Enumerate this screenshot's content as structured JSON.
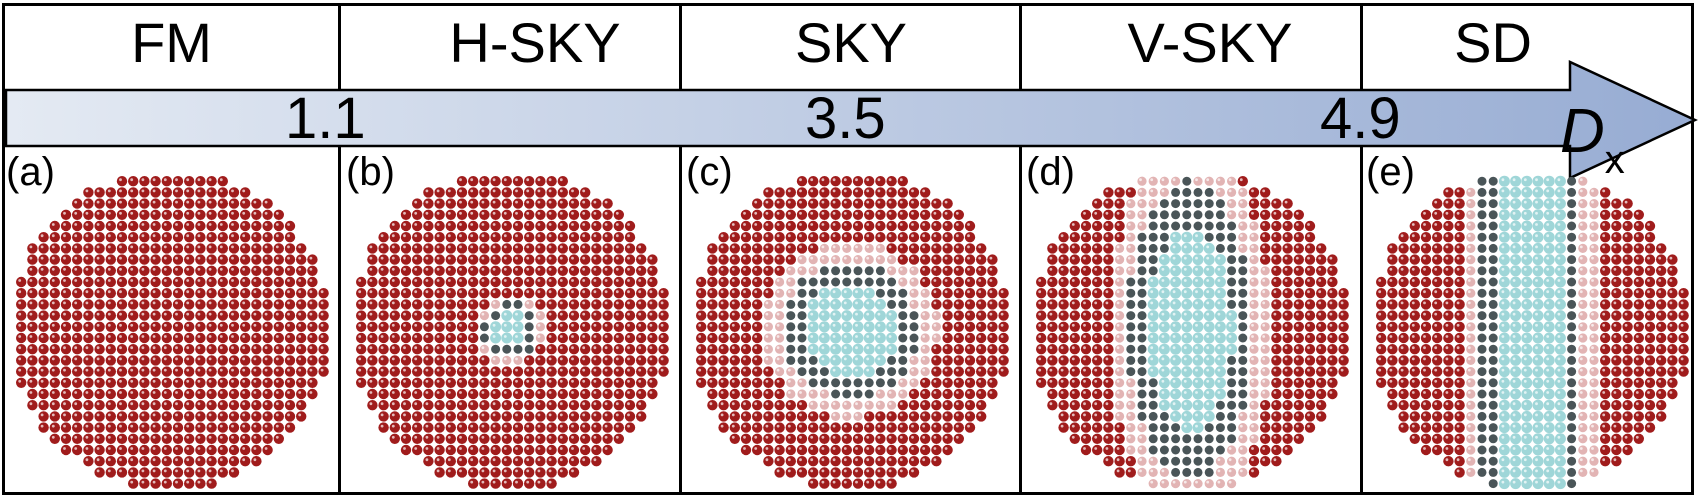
{
  "phases": [
    "FM",
    "H-SKY",
    "SKY",
    "V-SKY",
    "SD"
  ],
  "axis": {
    "label": "D",
    "subscript": "x",
    "values": [
      "1.1",
      "3.5",
      "4.9"
    ]
  },
  "panels": [
    {
      "label": "(a)",
      "texture": "uniform"
    },
    {
      "label": "(b)",
      "texture": "small-core"
    },
    {
      "label": "(c)",
      "texture": "round-core"
    },
    {
      "label": "(d)",
      "texture": "elongated-core"
    },
    {
      "label": "(e)",
      "texture": "stripe"
    }
  ],
  "colors": {
    "spin_up": "#a01c1c",
    "spin_down": "#9fd6d8",
    "wall": "#4a5558",
    "arrow_start": "#e4eaf3",
    "arrow_end": "#97acd3"
  }
}
